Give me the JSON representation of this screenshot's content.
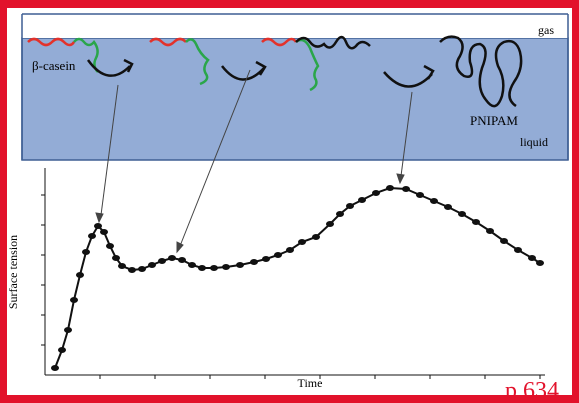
{
  "diagram": {
    "labels": {
      "gas": "gas",
      "protein": "β-casein",
      "polymer": "PNIPAM",
      "liquid": "liquid"
    },
    "axes": {
      "y_label": "Surface tension",
      "x_label": "Time"
    },
    "page": "p.634"
  }
}
